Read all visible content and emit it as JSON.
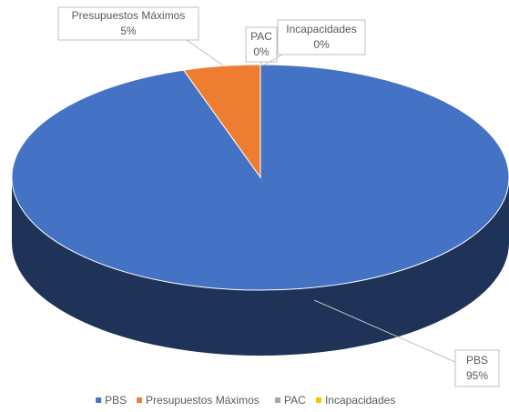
{
  "chart_data": {
    "type": "pie3d",
    "categories": [
      "PBS",
      "Presupuestos Máximos",
      "PAC",
      "Incapacidades"
    ],
    "values": [
      95,
      5,
      0,
      0
    ],
    "value_labels": [
      "95%",
      "5%",
      "0%",
      "0%"
    ],
    "colors": [
      "#4472c4",
      "#ed7d31",
      "#a5a5a5",
      "#ffc000"
    ],
    "legend": "bottom"
  }
}
